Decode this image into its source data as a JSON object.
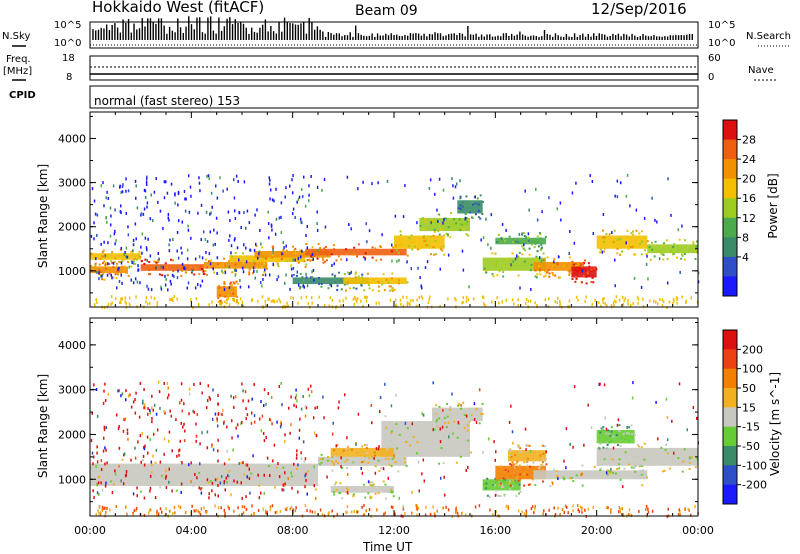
{
  "header": {
    "radar": "Hokkaido West (fitACF)",
    "beam": "Beam 09",
    "date": "12/Sep/2016"
  },
  "noise": {
    "left_label": "N.Sky",
    "right_label": "N.Search",
    "left_ticks": [
      "10^5",
      "10^0"
    ],
    "right_ticks": [
      "10^5",
      "10^0"
    ]
  },
  "freq": {
    "left_label_1": "Freq.",
    "left_label_2": "[MHz]",
    "left_ticks": [
      "18",
      "8"
    ],
    "right_label": "Nave",
    "right_ticks": [
      "60",
      "0"
    ]
  },
  "cpid": {
    "label": "CPID",
    "value": "normal (fast stereo) 153"
  },
  "colors": {
    "power": [
      "#1a1aff",
      "#2e4fc7",
      "#3a8a6a",
      "#4caa4c",
      "#9ccc20",
      "#f2c000",
      "#f29000",
      "#ee6010",
      "#dd1010"
    ],
    "velocity": [
      "#1a1aff",
      "#2e4fc7",
      "#3a8a6a",
      "#66cc33",
      "#c8c8c0",
      "#f2b020",
      "#f28000",
      "#ee4010",
      "#dd1010"
    ]
  },
  "chart_data": [
    {
      "type": "heatmap",
      "name": "power",
      "xlabel": "",
      "ylabel": "Slant Range [km]",
      "colorbar_label": "Power [dB]",
      "colorbar_ticks": [
        "28",
        "24",
        "20",
        "16",
        "12",
        "8",
        "4"
      ],
      "x_ticks": [
        "00:00",
        "04:00",
        "08:00",
        "12:00",
        "16:00",
        "20:00",
        "00:00"
      ],
      "y_ticks": [
        "4000",
        "3000",
        "2000",
        "1000"
      ],
      "xlim": [
        0,
        24
      ],
      "ylim": [
        180,
        4600
      ],
      "bands": [
        {
          "t0": 0.0,
          "t1": 2.0,
          "r0": 1250,
          "r1": 1400,
          "c": 5
        },
        {
          "t0": 0.0,
          "t1": 1.5,
          "r0": 950,
          "r1": 1100,
          "c": 6
        },
        {
          "t0": 2.0,
          "t1": 4.5,
          "r0": 1000,
          "r1": 1150,
          "c": 7
        },
        {
          "t0": 4.5,
          "t1": 7.0,
          "r0": 1050,
          "r1": 1200,
          "c": 6
        },
        {
          "t0": 5.5,
          "t1": 8.5,
          "r0": 1200,
          "r1": 1350,
          "c": 5
        },
        {
          "t0": 6.5,
          "t1": 9.5,
          "r0": 1300,
          "r1": 1450,
          "c": 6
        },
        {
          "t0": 8.5,
          "t1": 12.5,
          "r0": 1350,
          "r1": 1500,
          "c": 7
        },
        {
          "t0": 12.0,
          "t1": 14.0,
          "r0": 1500,
          "r1": 1800,
          "c": 5
        },
        {
          "t0": 13.0,
          "t1": 15.0,
          "r0": 1900,
          "r1": 2200,
          "c": 4
        },
        {
          "t0": 14.5,
          "t1": 15.5,
          "r0": 2300,
          "r1": 2600,
          "c": 2
        },
        {
          "t0": 15.5,
          "t1": 18.0,
          "r0": 1000,
          "r1": 1300,
          "c": 4
        },
        {
          "t0": 17.5,
          "t1": 19.5,
          "r0": 1000,
          "r1": 1200,
          "c": 6
        },
        {
          "t0": 19.0,
          "t1": 20.0,
          "r0": 850,
          "r1": 1100,
          "c": 8
        },
        {
          "t0": 20.0,
          "t1": 22.0,
          "r0": 1500,
          "r1": 1800,
          "c": 5
        },
        {
          "t0": 22.0,
          "t1": 24.0,
          "r0": 1400,
          "r1": 1600,
          "c": 4
        },
        {
          "t0": 16.0,
          "t1": 18.0,
          "r0": 1600,
          "r1": 1750,
          "c": 3
        },
        {
          "t0": 8.0,
          "t1": 11.0,
          "r0": 700,
          "r1": 850,
          "c": 2
        },
        {
          "t0": 10.0,
          "t1": 12.5,
          "r0": 700,
          "r1": 850,
          "c": 5
        },
        {
          "t0": 5.0,
          "t1": 5.8,
          "r0": 400,
          "r1": 650,
          "c": 6
        }
      ]
    },
    {
      "type": "heatmap",
      "name": "velocity",
      "xlabel": "Time UT",
      "ylabel": "Slant Range [km]",
      "colorbar_label": "Velocity [m s^-1]",
      "colorbar_ticks": [
        "200",
        "100",
        "50",
        "15",
        "-15",
        "-50",
        "-100",
        "-200"
      ],
      "x_ticks": [
        "00:00",
        "04:00",
        "08:00",
        "12:00",
        "16:00",
        "20:00",
        "00:00"
      ],
      "y_ticks": [
        "4000",
        "3000",
        "2000",
        "1000"
      ],
      "xlim": [
        0,
        24
      ],
      "ylim": [
        180,
        4600
      ],
      "bands": [
        {
          "t0": 0.0,
          "t1": 9.0,
          "r0": 850,
          "r1": 1350,
          "c": 4
        },
        {
          "t0": 9.0,
          "t1": 12.5,
          "r0": 1300,
          "r1": 1500,
          "c": 4
        },
        {
          "t0": 9.5,
          "t1": 12.0,
          "r0": 700,
          "r1": 850,
          "c": 4
        },
        {
          "t0": 11.5,
          "t1": 15.0,
          "r0": 1500,
          "r1": 2300,
          "c": 4
        },
        {
          "t0": 13.5,
          "t1": 15.5,
          "r0": 2300,
          "r1": 2600,
          "c": 4
        },
        {
          "t0": 9.5,
          "t1": 12.0,
          "r0": 1500,
          "r1": 1700,
          "c": 5
        },
        {
          "t0": 15.5,
          "t1": 17.0,
          "r0": 750,
          "r1": 1000,
          "c": 3
        },
        {
          "t0": 16.0,
          "t1": 18.0,
          "r0": 1000,
          "r1": 1300,
          "c": 6
        },
        {
          "t0": 16.5,
          "t1": 18.0,
          "r0": 1400,
          "r1": 1650,
          "c": 5
        },
        {
          "t0": 17.5,
          "t1": 22.0,
          "r0": 1000,
          "r1": 1200,
          "c": 4
        },
        {
          "t0": 20.0,
          "t1": 24.0,
          "r0": 1300,
          "r1": 1700,
          "c": 4
        },
        {
          "t0": 20.0,
          "t1": 21.5,
          "r0": 1800,
          "r1": 2100,
          "c": 3
        }
      ]
    }
  ]
}
